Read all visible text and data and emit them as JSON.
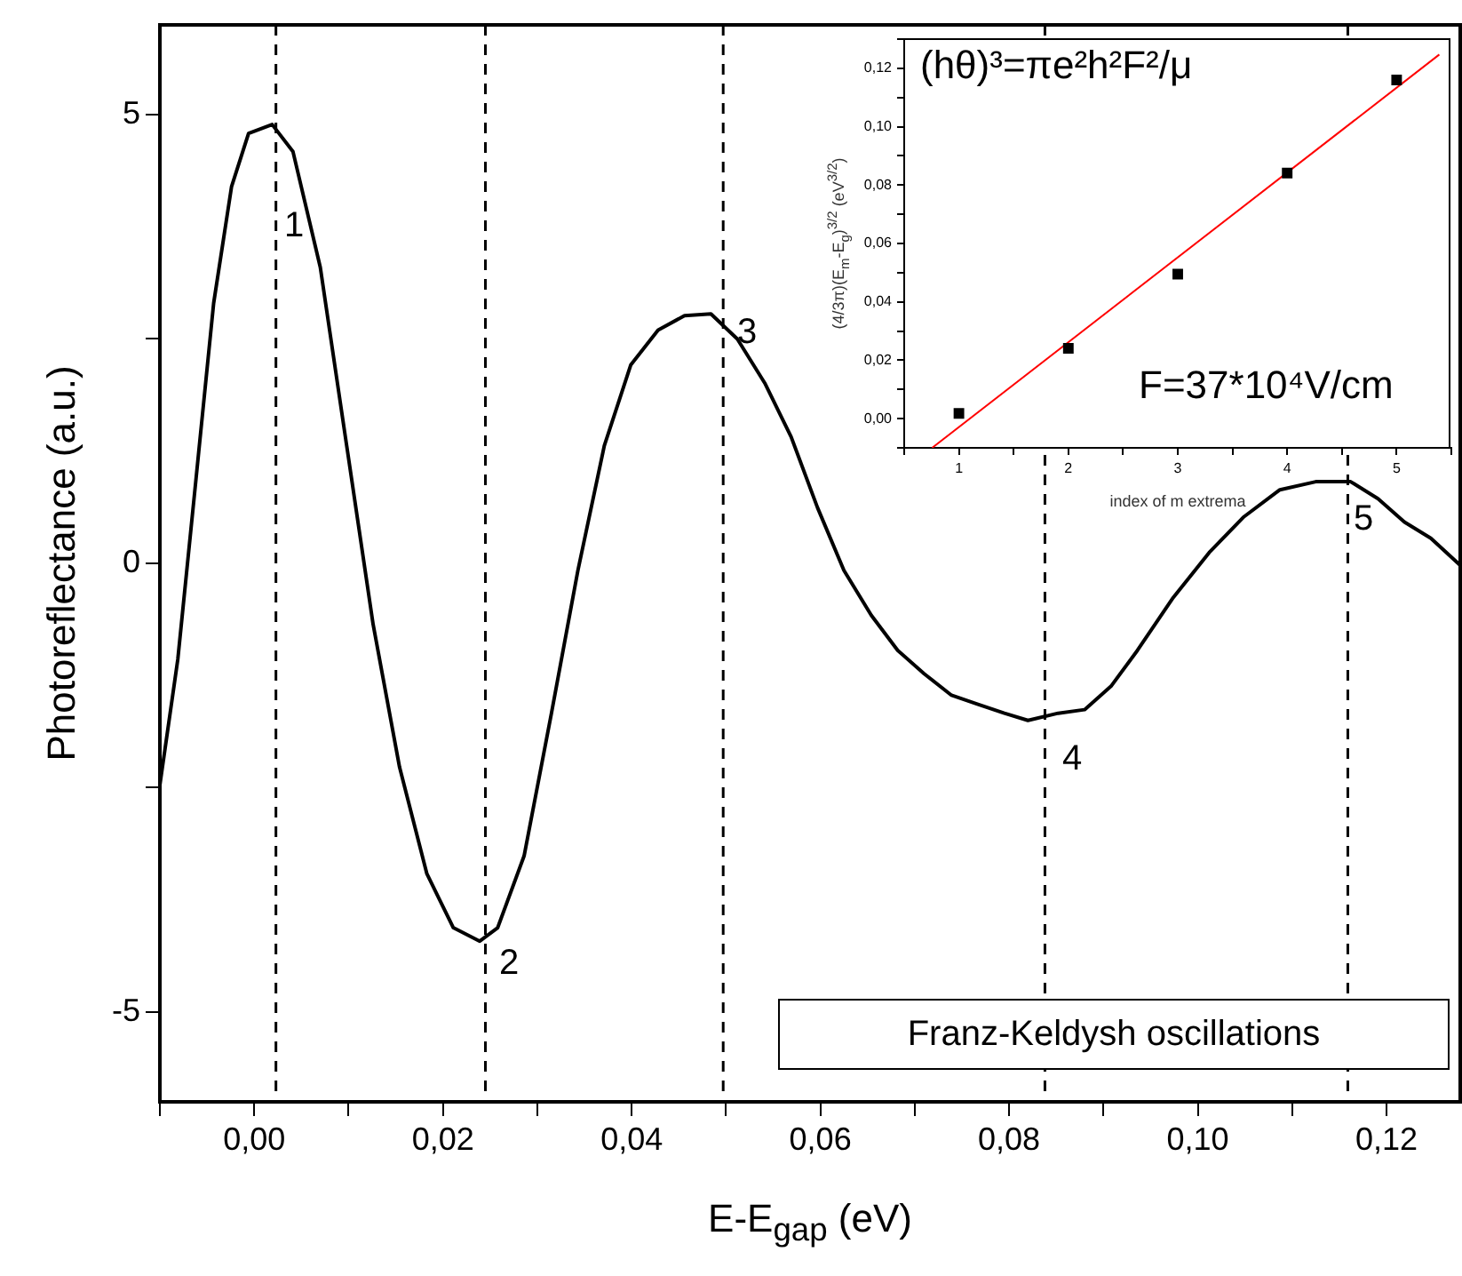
{
  "chart_data": [
    {
      "type": "line",
      "xlabel": "E-E$_{gap}$ (eV)",
      "ylabel": "Photoreflectance (a.u.)",
      "xlim": [
        -0.01,
        0.128
      ],
      "ylim": [
        -6,
        6
      ],
      "xticks": [
        {
          "value": -0.01,
          "label": null
        },
        {
          "value": 0,
          "label": "0,00"
        },
        {
          "value": 0.01,
          "label": null
        },
        {
          "value": 0.02,
          "label": "0,02"
        },
        {
          "value": 0.03,
          "label": null
        },
        {
          "value": 0.04,
          "label": "0,04"
        },
        {
          "value": 0.05,
          "label": null
        },
        {
          "value": 0.06,
          "label": "0,06"
        },
        {
          "value": 0.07,
          "label": null
        },
        {
          "value": 0.08,
          "label": "0,08"
        },
        {
          "value": 0.09,
          "label": null
        },
        {
          "value": 0.1,
          "label": "0,10"
        },
        {
          "value": 0.11,
          "label": null
        },
        {
          "value": 0.12,
          "label": "0,12"
        }
      ],
      "yticks": [
        -5,
        {
          "value": -2.5,
          "label": null
        },
        0,
        {
          "value": 2.5,
          "label": null
        },
        5
      ],
      "grid": false,
      "legend": false,
      "marker": "none",
      "line_style": "solid",
      "series": [
        {
          "color": "#000000",
          "x": [
            -0.01,
            -0.0081,
            -0.0062,
            -0.0043,
            -0.0024,
            -0.0006,
            0.0019,
            0.0041,
            0.007,
            0.0098,
            0.0126,
            0.0154,
            0.0183,
            0.0211,
            0.0239,
            0.0258,
            0.0286,
            0.0315,
            0.0343,
            0.0371,
            0.0399,
            0.0428,
            0.0456,
            0.0484,
            0.0512,
            0.0541,
            0.0569,
            0.0597,
            0.0625,
            0.0654,
            0.0682,
            0.071,
            0.0739,
            0.0767,
            0.0795,
            0.082,
            0.0852,
            0.088,
            0.0908,
            0.0936,
            0.0974,
            0.1012,
            0.1049,
            0.1087,
            0.1125,
            0.1162,
            0.1191,
            0.1219,
            0.1247,
            0.128
          ],
          "values": [
            -2.47,
            -1.07,
            0.91,
            2.9,
            4.2,
            4.79,
            4.89,
            4.59,
            3.3,
            1.31,
            -0.68,
            -2.27,
            -3.46,
            -4.06,
            -4.21,
            -4.06,
            -3.26,
            -1.67,
            -0.08,
            1.31,
            2.21,
            2.6,
            2.76,
            2.78,
            2.5,
            2.01,
            1.41,
            0.62,
            -0.08,
            -0.58,
            -0.97,
            -1.23,
            -1.47,
            -1.57,
            -1.67,
            -1.75,
            -1.67,
            -1.63,
            -1.37,
            -0.97,
            -0.38,
            0.12,
            0.52,
            0.82,
            0.91,
            0.91,
            0.72,
            0.46,
            0.28,
            -0.04
          ]
        }
      ],
      "ref_lines": [
        {
          "axis": "x",
          "value": 0.0023,
          "color": "#000000",
          "line_style": "dashed"
        },
        {
          "axis": "x",
          "value": 0.0245,
          "color": "#000000",
          "line_style": "dashed"
        },
        {
          "axis": "x",
          "value": 0.0497,
          "color": "#000000",
          "line_style": "dashed"
        },
        {
          "axis": "x",
          "value": 0.0838,
          "color": "#000000",
          "line_style": "dashed"
        },
        {
          "axis": "x",
          "value": 0.1159,
          "color": "#000000",
          "line_style": "dashed"
        }
      ],
      "annotations": [
        "1",
        "2",
        "3",
        "4",
        "5",
        "Franz-Keldysh oscillations"
      ]
    },
    {
      "type": "scatter",
      "xlabel": "index of m extrema",
      "ylabel": "(4/3π)(E$_{m}$-E$_{g}$)$^{3/2}$  (eV$^{3/2}$)",
      "xlim": [
        0.5,
        5.5
      ],
      "ylim": [
        -0.01,
        0.13
      ],
      "xticks": [
        {
          "value": 0.5,
          "label": null
        },
        1,
        {
          "value": 1.5,
          "label": null
        },
        2,
        {
          "value": 2.5,
          "label": null
        },
        3,
        {
          "value": 3.5,
          "label": null
        },
        4,
        {
          "value": 4.5,
          "label": null
        },
        5,
        {
          "value": 5.5,
          "label": null
        }
      ],
      "yticks": [
        {
          "value": -0.01,
          "label": null
        },
        {
          "value": 0,
          "label": "0,00"
        },
        {
          "value": 0.01,
          "label": null
        },
        {
          "value": 0.02,
          "label": "0,02"
        },
        {
          "value": 0.03,
          "label": null
        },
        {
          "value": 0.04,
          "label": "0,04"
        },
        {
          "value": 0.05,
          "label": null
        },
        {
          "value": 0.06,
          "label": "0,06"
        },
        {
          "value": 0.07,
          "label": null
        },
        {
          "value": 0.08,
          "label": "0,08"
        },
        {
          "value": 0.09,
          "label": null
        },
        {
          "value": 0.1,
          "label": "0,10"
        },
        {
          "value": 0.11,
          "label": null
        },
        {
          "value": 0.12,
          "label": "0,12"
        },
        {
          "value": 0.13,
          "label": null
        }
      ],
      "grid": false,
      "legend": false,
      "series": [
        {
          "type": "scatter",
          "marker": "square",
          "color": "#000000",
          "x": [
            1,
            2,
            3,
            4,
            5
          ],
          "values": [
            0.0018,
            0.0241,
            0.0495,
            0.0841,
            0.116
          ]
        },
        {
          "type": "line",
          "marker": "none",
          "color": "#ff0000",
          "x": [
            0.755,
            5.39
          ],
          "values": [
            -0.01,
            0.1247
          ]
        }
      ],
      "annotations": [
        "(hθ)³=πe²h²F²/μ",
        "F=37*10⁴V/cm"
      ]
    }
  ]
}
